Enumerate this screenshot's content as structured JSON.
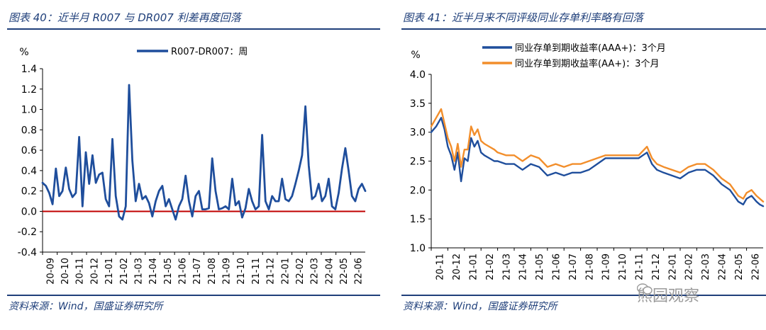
{
  "left": {
    "title": "图表 40：近半月 R007 与 DR007 利差再度回落",
    "source": "资料来源：Wind，国盛证券研究所"
  },
  "right": {
    "title": "图表 41：近半月来不同评级同业存单利率略有回落",
    "source": "资料来源：Wind，国盛证券研究所"
  },
  "watermark": "熊园观察",
  "chart_data": [
    {
      "type": "line",
      "title": "",
      "ylabel": "%",
      "xlabel": "",
      "ylim": [
        -0.4,
        1.4
      ],
      "yticks": [
        "1.4",
        "1.2",
        "1.0",
        "0.8",
        "0.6",
        "0.4",
        "0.2",
        "0.0",
        "-0.2",
        "-0.4"
      ],
      "ytick_values": [
        1.4,
        1.2,
        1.0,
        0.8,
        0.6,
        0.4,
        0.2,
        0.0,
        -0.2,
        -0.4
      ],
      "xticks": [
        "20-09",
        "20-10",
        "20-11",
        "20-12",
        "21-01",
        "21-02",
        "21-03",
        "21-04",
        "21-05",
        "21-06",
        "21-07",
        "21-08",
        "21-09",
        "21-10",
        "21-11",
        "21-12",
        "22-01",
        "22-02",
        "22-03",
        "22-04",
        "22-05",
        "22-06"
      ],
      "x_range": [
        0,
        97
      ],
      "legend_position": "top-right",
      "reference_line": {
        "y": 0,
        "color": "#c00000"
      },
      "series": [
        {
          "name": "R007-DR007：周",
          "color": "#1f4e9c",
          "values": [
            0.28,
            0.25,
            0.18,
            0.07,
            0.42,
            0.15,
            0.2,
            0.43,
            0.22,
            0.14,
            0.18,
            0.73,
            0.05,
            0.58,
            0.27,
            0.55,
            0.28,
            0.36,
            0.38,
            0.12,
            0.05,
            0.71,
            0.15,
            -0.05,
            -0.08,
            0.05,
            1.24,
            0.5,
            0.1,
            0.27,
            0.12,
            0.15,
            0.08,
            -0.05,
            0.1,
            0.2,
            0.25,
            0.05,
            0.12,
            0.02,
            -0.08,
            0.05,
            0.12,
            0.35,
            0.1,
            -0.05,
            0.15,
            0.2,
            0.02,
            0.02,
            0.03,
            0.52,
            0.2,
            0.02,
            0.03,
            0.05,
            0.02,
            0.32,
            0.06,
            0.1,
            -0.06,
            0.03,
            0.22,
            0.1,
            0.02,
            0.05,
            0.75,
            0.1,
            0.02,
            0.15,
            0.1,
            0.1,
            0.32,
            0.12,
            0.1,
            0.15,
            0.27,
            0.4,
            0.55,
            1.03,
            0.45,
            0.12,
            0.15,
            0.27,
            0.1,
            0.15,
            0.32,
            0.05,
            0.02,
            0.18,
            0.42,
            0.62,
            0.4,
            0.15,
            0.1,
            0.22,
            0.27,
            0.2
          ]
        }
      ]
    },
    {
      "type": "line",
      "title": "",
      "ylabel": "%",
      "xlabel": "",
      "ylim": [
        1.0,
        4.0
      ],
      "yticks": [
        "4.0",
        "3.5",
        "3.0",
        "2.5",
        "2.0",
        "1.5",
        "1.0"
      ],
      "ytick_values": [
        4.0,
        3.5,
        3.0,
        2.5,
        2.0,
        1.5,
        1.0
      ],
      "xticks": [
        "20-11",
        "20-12",
        "21-01",
        "21-02",
        "21-03",
        "21-04",
        "21-05",
        "21-06",
        "21-07",
        "21-08",
        "21-09",
        "21-10",
        "21-11",
        "21-12",
        "22-01",
        "22-02",
        "22-03",
        "22-04",
        "22-05",
        "22-06"
      ],
      "x_range": [
        0,
        20
      ],
      "legend_position": "top",
      "series": [
        {
          "name": "同业存单到期收益率(AAA+)：3个月",
          "color": "#1f4e9c",
          "x": [
            0,
            0.3,
            0.6,
            0.8,
            1.0,
            1.2,
            1.4,
            1.6,
            1.8,
            2.0,
            2.2,
            2.4,
            2.6,
            2.8,
            3.0,
            3.2,
            3.5,
            3.8,
            4.0,
            4.5,
            5.0,
            5.5,
            6.0,
            6.5,
            7.0,
            7.5,
            8.0,
            8.5,
            9.0,
            9.5,
            10.0,
            10.5,
            11.0,
            11.5,
            12.0,
            12.5,
            13.0,
            13.3,
            13.6,
            14.0,
            14.5,
            15.0,
            15.5,
            16.0,
            16.5,
            17.0,
            17.5,
            18.0,
            18.5,
            18.8,
            19.0,
            19.3,
            19.6,
            19.8,
            20.0
          ],
          "values": [
            3.0,
            3.1,
            3.25,
            3.05,
            2.75,
            2.6,
            2.35,
            2.65,
            2.15,
            2.55,
            2.5,
            2.9,
            2.75,
            2.85,
            2.65,
            2.6,
            2.55,
            2.5,
            2.5,
            2.45,
            2.45,
            2.35,
            2.45,
            2.4,
            2.25,
            2.3,
            2.25,
            2.3,
            2.3,
            2.35,
            2.45,
            2.55,
            2.55,
            2.55,
            2.55,
            2.55,
            2.65,
            2.45,
            2.35,
            2.3,
            2.25,
            2.2,
            2.3,
            2.35,
            2.35,
            2.25,
            2.1,
            2.0,
            1.8,
            1.75,
            1.85,
            1.9,
            1.8,
            1.75,
            1.72
          ]
        },
        {
          "name": "同业存单到期收益率(AA+)：3个月",
          "color": "#f28e2b",
          "x": [
            0,
            0.3,
            0.6,
            0.8,
            1.0,
            1.2,
            1.4,
            1.6,
            1.8,
            2.0,
            2.2,
            2.4,
            2.6,
            2.8,
            3.0,
            3.2,
            3.5,
            3.8,
            4.0,
            4.5,
            5.0,
            5.5,
            6.0,
            6.5,
            7.0,
            7.5,
            8.0,
            8.5,
            9.0,
            9.5,
            10.0,
            10.5,
            11.0,
            11.5,
            12.0,
            12.5,
            13.0,
            13.3,
            13.6,
            14.0,
            14.5,
            15.0,
            15.5,
            16.0,
            16.5,
            17.0,
            17.5,
            18.0,
            18.5,
            18.8,
            19.0,
            19.3,
            19.6,
            19.8,
            20.0
          ],
          "values": [
            3.1,
            3.25,
            3.4,
            3.15,
            2.9,
            2.75,
            2.5,
            2.8,
            2.4,
            2.7,
            2.7,
            3.1,
            2.95,
            3.05,
            2.85,
            2.8,
            2.75,
            2.7,
            2.65,
            2.6,
            2.6,
            2.5,
            2.6,
            2.55,
            2.4,
            2.45,
            2.4,
            2.45,
            2.45,
            2.5,
            2.55,
            2.6,
            2.6,
            2.6,
            2.6,
            2.6,
            2.75,
            2.55,
            2.45,
            2.4,
            2.35,
            2.3,
            2.4,
            2.45,
            2.45,
            2.35,
            2.2,
            2.1,
            1.9,
            1.85,
            1.95,
            2.0,
            1.9,
            1.85,
            1.8
          ]
        }
      ]
    }
  ]
}
